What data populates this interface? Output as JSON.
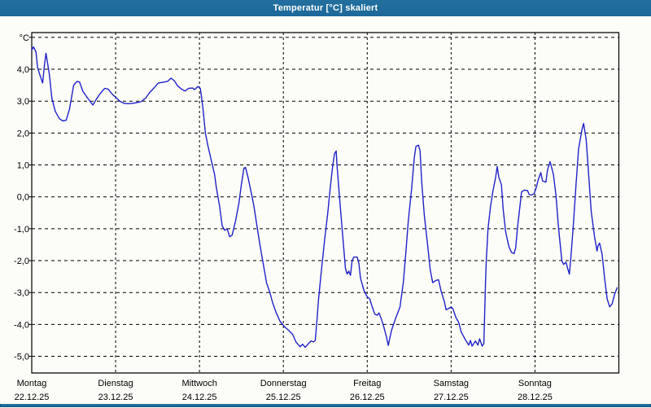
{
  "window": {
    "title": "Temperatur [°C] skaliert"
  },
  "colors": {
    "titlebar": "#1e6d9e",
    "frame": "#1e6d9e",
    "plot_background": "#fcfdf8",
    "grid": "#000000",
    "axis": "#000000",
    "line": "#2121c8",
    "label_text": "#000000",
    "title_text": "#ffffff"
  },
  "chart_data": {
    "type": "line",
    "title": "Temperatur [°C] skaliert",
    "ylabel": "",
    "xlabel": "",
    "y_unit_label": "°C",
    "ylim": [
      -5.55,
      5.15
    ],
    "xlim_days": [
      0,
      7
    ],
    "grid": "dashed",
    "legend": "none",
    "y_ticks": [
      {
        "v": 5,
        "label": ""
      },
      {
        "v": 4,
        "label": "4,0"
      },
      {
        "v": 3,
        "label": "3,0"
      },
      {
        "v": 2,
        "label": "2,0"
      },
      {
        "v": 1,
        "label": "1,0"
      },
      {
        "v": 0,
        "label": "0,0"
      },
      {
        "v": -1,
        "label": "-1,0"
      },
      {
        "v": -2,
        "label": "-2,0"
      },
      {
        "v": -3,
        "label": "-3,0"
      },
      {
        "v": -4,
        "label": "-4,0"
      },
      {
        "v": -5,
        "label": "-5,0"
      }
    ],
    "x_days": [
      {
        "name": "Montag",
        "date": "22.12.25"
      },
      {
        "name": "Dienstag",
        "date": "23.12.25"
      },
      {
        "name": "Mittwoch",
        "date": "24.12.25"
      },
      {
        "name": "Donnerstag",
        "date": "25.12.25"
      },
      {
        "name": "Freitag",
        "date": "26.12.25"
      },
      {
        "name": "Samstag",
        "date": "27.12.25"
      },
      {
        "name": "Sonntag",
        "date": "28.12.25"
      }
    ],
    "series": [
      {
        "name": "Temperatur",
        "color": "#2121c8",
        "points": [
          [
            0.0,
            4.6
          ],
          [
            0.02,
            4.7
          ],
          [
            0.05,
            4.55
          ],
          [
            0.07,
            4.05
          ],
          [
            0.1,
            3.8
          ],
          [
            0.13,
            3.57
          ],
          [
            0.15,
            4.1
          ],
          [
            0.17,
            4.5
          ],
          [
            0.21,
            3.85
          ],
          [
            0.24,
            3.1
          ],
          [
            0.28,
            2.68
          ],
          [
            0.33,
            2.45
          ],
          [
            0.37,
            2.38
          ],
          [
            0.41,
            2.4
          ],
          [
            0.45,
            2.75
          ],
          [
            0.5,
            3.5
          ],
          [
            0.54,
            3.62
          ],
          [
            0.57,
            3.6
          ],
          [
            0.61,
            3.3
          ],
          [
            0.66,
            3.12
          ],
          [
            0.7,
            2.98
          ],
          [
            0.73,
            2.88
          ],
          [
            0.77,
            3.06
          ],
          [
            0.82,
            3.25
          ],
          [
            0.87,
            3.4
          ],
          [
            0.91,
            3.38
          ],
          [
            0.96,
            3.22
          ],
          [
            1.01,
            3.1
          ],
          [
            1.05,
            3.0
          ],
          [
            1.1,
            2.93
          ],
          [
            1.15,
            2.92
          ],
          [
            1.2,
            2.93
          ],
          [
            1.25,
            2.95
          ],
          [
            1.3,
            2.98
          ],
          [
            1.36,
            3.1
          ],
          [
            1.4,
            3.25
          ],
          [
            1.46,
            3.42
          ],
          [
            1.51,
            3.57
          ],
          [
            1.56,
            3.59
          ],
          [
            1.62,
            3.62
          ],
          [
            1.66,
            3.72
          ],
          [
            1.7,
            3.64
          ],
          [
            1.74,
            3.48
          ],
          [
            1.79,
            3.37
          ],
          [
            1.83,
            3.32
          ],
          [
            1.87,
            3.4
          ],
          [
            1.92,
            3.41
          ],
          [
            1.94,
            3.36
          ],
          [
            1.98,
            3.46
          ],
          [
            2.01,
            3.4
          ],
          [
            2.04,
            2.8
          ],
          [
            2.07,
            2.0
          ],
          [
            2.1,
            1.6
          ],
          [
            2.14,
            1.15
          ],
          [
            2.18,
            0.7
          ],
          [
            2.2,
            0.3
          ],
          [
            2.24,
            -0.3
          ],
          [
            2.27,
            -0.9
          ],
          [
            2.3,
            -1.05
          ],
          [
            2.33,
            -1.0
          ],
          [
            2.36,
            -1.25
          ],
          [
            2.39,
            -1.2
          ],
          [
            2.43,
            -0.75
          ],
          [
            2.47,
            -0.2
          ],
          [
            2.5,
            0.4
          ],
          [
            2.53,
            0.9
          ],
          [
            2.55,
            0.92
          ],
          [
            2.58,
            0.6
          ],
          [
            2.62,
            0.1
          ],
          [
            2.65,
            -0.3
          ],
          [
            2.69,
            -1.0
          ],
          [
            2.72,
            -1.5
          ],
          [
            2.76,
            -2.1
          ],
          [
            2.8,
            -2.7
          ],
          [
            2.84,
            -3.0
          ],
          [
            2.87,
            -3.3
          ],
          [
            2.91,
            -3.6
          ],
          [
            2.96,
            -3.9
          ],
          [
            3.01,
            -4.06
          ],
          [
            3.06,
            -4.18
          ],
          [
            3.11,
            -4.31
          ],
          [
            3.15,
            -4.55
          ],
          [
            3.2,
            -4.7
          ],
          [
            3.23,
            -4.62
          ],
          [
            3.26,
            -4.72
          ],
          [
            3.3,
            -4.6
          ],
          [
            3.33,
            -4.52
          ],
          [
            3.36,
            -4.55
          ],
          [
            3.38,
            -4.5
          ],
          [
            3.4,
            -3.9
          ],
          [
            3.42,
            -3.2
          ],
          [
            3.45,
            -2.4
          ],
          [
            3.49,
            -1.4
          ],
          [
            3.53,
            -0.5
          ],
          [
            3.56,
            0.3
          ],
          [
            3.59,
            1.0
          ],
          [
            3.61,
            1.35
          ],
          [
            3.63,
            1.44
          ],
          [
            3.64,
            0.97
          ],
          [
            3.67,
            -0.04
          ],
          [
            3.71,
            -1.3
          ],
          [
            3.74,
            -2.24
          ],
          [
            3.76,
            -2.42
          ],
          [
            3.78,
            -2.33
          ],
          [
            3.8,
            -2.46
          ],
          [
            3.82,
            -2.0
          ],
          [
            3.84,
            -1.89
          ],
          [
            3.88,
            -1.89
          ],
          [
            3.9,
            -2.08
          ],
          [
            3.92,
            -2.55
          ],
          [
            3.96,
            -2.93
          ],
          [
            4.0,
            -3.14
          ],
          [
            4.03,
            -3.2
          ],
          [
            4.06,
            -3.46
          ],
          [
            4.09,
            -3.68
          ],
          [
            4.12,
            -3.71
          ],
          [
            4.14,
            -3.64
          ],
          [
            4.17,
            -3.84
          ],
          [
            4.2,
            -4.1
          ],
          [
            4.23,
            -4.4
          ],
          [
            4.25,
            -4.66
          ],
          [
            4.29,
            -4.18
          ],
          [
            4.34,
            -3.8
          ],
          [
            4.36,
            -3.66
          ],
          [
            4.39,
            -3.46
          ],
          [
            4.43,
            -2.69
          ],
          [
            4.46,
            -1.76
          ],
          [
            4.49,
            -0.74
          ],
          [
            4.53,
            0.27
          ],
          [
            4.56,
            1.2
          ],
          [
            4.58,
            1.58
          ],
          [
            4.61,
            1.62
          ],
          [
            4.63,
            1.45
          ],
          [
            4.65,
            0.44
          ],
          [
            4.68,
            -0.57
          ],
          [
            4.72,
            -1.51
          ],
          [
            4.75,
            -2.27
          ],
          [
            4.78,
            -2.69
          ],
          [
            4.82,
            -2.62
          ],
          [
            4.85,
            -2.6
          ],
          [
            4.88,
            -2.95
          ],
          [
            4.92,
            -3.29
          ],
          [
            4.94,
            -3.54
          ],
          [
            4.97,
            -3.5
          ],
          [
            5.0,
            -3.46
          ],
          [
            5.02,
            -3.5
          ],
          [
            5.06,
            -3.8
          ],
          [
            5.09,
            -3.93
          ],
          [
            5.12,
            -4.23
          ],
          [
            5.17,
            -4.48
          ],
          [
            5.21,
            -4.65
          ],
          [
            5.23,
            -4.5
          ],
          [
            5.25,
            -4.68
          ],
          [
            5.29,
            -4.52
          ],
          [
            5.32,
            -4.65
          ],
          [
            5.34,
            -4.45
          ],
          [
            5.37,
            -4.68
          ],
          [
            5.39,
            -4.6
          ],
          [
            5.41,
            -2.7
          ],
          [
            5.42,
            -2.0
          ],
          [
            5.44,
            -1.0
          ],
          [
            5.47,
            -0.3
          ],
          [
            5.5,
            0.2
          ],
          [
            5.53,
            0.6
          ],
          [
            5.55,
            0.95
          ],
          [
            5.57,
            0.6
          ],
          [
            5.6,
            0.38
          ],
          [
            5.62,
            -0.38
          ],
          [
            5.65,
            -1.1
          ],
          [
            5.69,
            -1.57
          ],
          [
            5.72,
            -1.74
          ],
          [
            5.75,
            -1.78
          ],
          [
            5.77,
            -1.6
          ],
          [
            5.79,
            -1.0
          ],
          [
            5.82,
            -0.3
          ],
          [
            5.84,
            0.15
          ],
          [
            5.87,
            0.21
          ],
          [
            5.91,
            0.2
          ],
          [
            5.93,
            0.08
          ],
          [
            5.96,
            0.05
          ],
          [
            5.99,
            0.1
          ],
          [
            6.01,
            0.25
          ],
          [
            6.04,
            0.55
          ],
          [
            6.07,
            0.76
          ],
          [
            6.09,
            0.5
          ],
          [
            6.13,
            0.46
          ],
          [
            6.15,
            0.85
          ],
          [
            6.18,
            1.1
          ],
          [
            6.22,
            0.7
          ],
          [
            6.25,
            0.05
          ],
          [
            6.28,
            -0.95
          ],
          [
            6.32,
            -2.0
          ],
          [
            6.34,
            -2.12
          ],
          [
            6.37,
            -2.05
          ],
          [
            6.39,
            -2.25
          ],
          [
            6.41,
            -2.42
          ],
          [
            6.43,
            -1.85
          ],
          [
            6.46,
            -0.8
          ],
          [
            6.49,
            0.4
          ],
          [
            6.52,
            1.5
          ],
          [
            6.56,
            2.1
          ],
          [
            6.58,
            2.3
          ],
          [
            6.61,
            1.8
          ],
          [
            6.64,
            0.7
          ],
          [
            6.67,
            -0.45
          ],
          [
            6.71,
            -1.25
          ],
          [
            6.74,
            -1.7
          ],
          [
            6.75,
            -1.55
          ],
          [
            6.77,
            -1.45
          ],
          [
            6.8,
            -1.8
          ],
          [
            6.83,
            -2.55
          ],
          [
            6.86,
            -3.2
          ],
          [
            6.89,
            -3.45
          ],
          [
            6.92,
            -3.35
          ],
          [
            6.95,
            -3.05
          ],
          [
            6.98,
            -2.85
          ]
        ]
      }
    ]
  }
}
